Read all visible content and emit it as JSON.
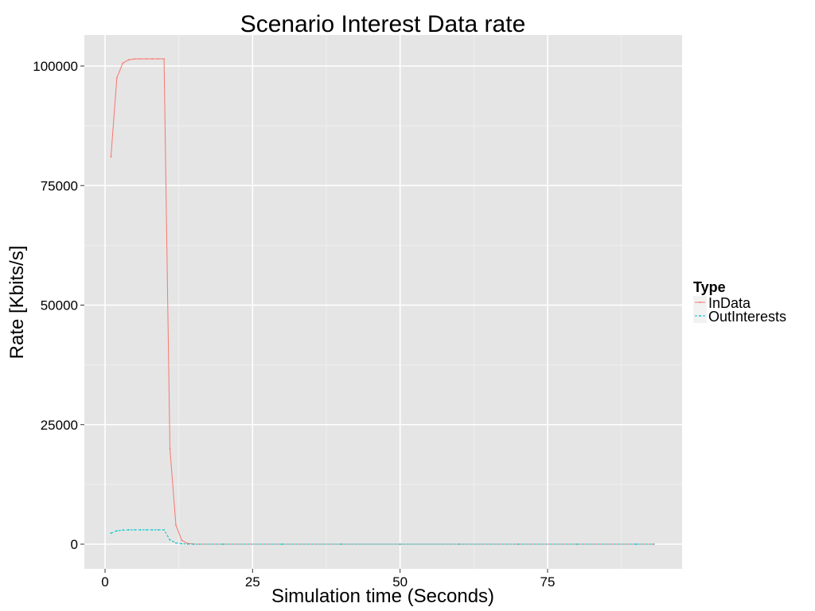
{
  "chart_data": {
    "type": "line",
    "title": "Scenario Interest Data rate",
    "xlabel": "Simulation time (Seconds)",
    "ylabel": "Rate [Kbits/s]",
    "xlim": [
      -4,
      98
    ],
    "ylim": [
      -5000,
      106500
    ],
    "x_ticks": [
      0,
      25,
      50,
      75
    ],
    "y_ticks": [
      0,
      25000,
      50000,
      75000,
      100000
    ],
    "x_minor_ticks": [
      12.5,
      37.5,
      62.5,
      87.5
    ],
    "y_minor_ticks": [
      12500,
      37500,
      62500,
      87500
    ],
    "grid": true,
    "legend": {
      "title": "Type",
      "position": "right"
    },
    "series": [
      {
        "name": "InData",
        "color": "#F8766D",
        "line_style": "solid",
        "points": [
          [
            1,
            81000
          ],
          [
            2,
            97500
          ],
          [
            3,
            100600
          ],
          [
            4,
            101300
          ],
          [
            5,
            101500
          ],
          [
            6,
            101500
          ],
          [
            7,
            101500
          ],
          [
            8,
            101500
          ],
          [
            9,
            101500
          ],
          [
            10,
            101500
          ],
          [
            11,
            20000
          ],
          [
            12,
            4000
          ],
          [
            13,
            800
          ],
          [
            14,
            150
          ],
          [
            15,
            20
          ],
          [
            16,
            0
          ],
          [
            20,
            0
          ],
          [
            30,
            0
          ],
          [
            40,
            0
          ],
          [
            50,
            0
          ],
          [
            60,
            0
          ],
          [
            70,
            0
          ],
          [
            80,
            0
          ],
          [
            90,
            0
          ],
          [
            93,
            0
          ]
        ]
      },
      {
        "name": "OutInterests",
        "color": "#00BFC4",
        "line_style": "dashed",
        "points": [
          [
            1,
            2300
          ],
          [
            2,
            2800
          ],
          [
            3,
            2950
          ],
          [
            4,
            3000
          ],
          [
            5,
            3000
          ],
          [
            6,
            3000
          ],
          [
            7,
            3000
          ],
          [
            8,
            3000
          ],
          [
            9,
            3000
          ],
          [
            10,
            3000
          ],
          [
            11,
            900
          ],
          [
            12,
            250
          ],
          [
            13,
            80
          ],
          [
            14,
            20
          ],
          [
            15,
            0
          ],
          [
            20,
            0
          ],
          [
            30,
            0
          ],
          [
            40,
            0
          ],
          [
            50,
            0
          ],
          [
            60,
            0
          ],
          [
            70,
            0
          ],
          [
            80,
            0
          ],
          [
            90,
            0
          ],
          [
            93,
            0
          ]
        ]
      }
    ]
  }
}
